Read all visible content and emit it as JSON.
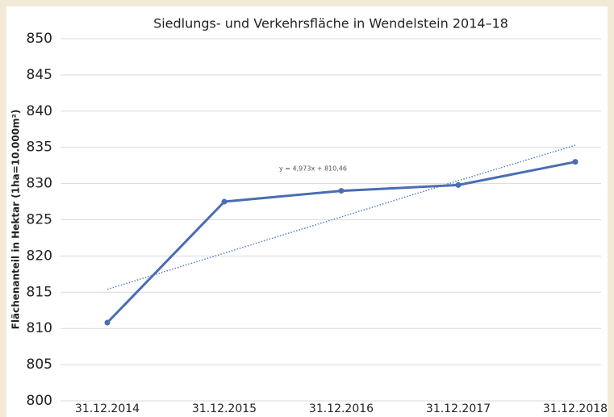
{
  "chart_data": {
    "type": "line",
    "title": "Siedlungs- und Verkehrsfläche in Wendelstein 2014–18",
    "y_label": "Flächenanteil in Hektar (1ha=10.000m²)",
    "annotation": "y = 4,973x + 810,46",
    "categories": [
      "31.12.2014",
      "31.12.2015",
      "31.12.2016",
      "31.12.2017",
      "31.12.2018"
    ],
    "series": [
      {
        "name": "Siedlungs- und Verkehrsfläche",
        "color": "#4a6db3",
        "style": "solid",
        "values": [
          810.8,
          827.5,
          829.0,
          829.8,
          833.0
        ]
      },
      {
        "name": "Trend",
        "color": "#5b7fc4",
        "style": "dotted",
        "values": [
          815.4,
          820.4,
          825.4,
          830.4,
          835.3
        ]
      }
    ],
    "ylim": [
      800,
      850
    ],
    "yticks": [
      800,
      805,
      810,
      815,
      820,
      825,
      830,
      835,
      840,
      845,
      850
    ],
    "grid": true
  }
}
